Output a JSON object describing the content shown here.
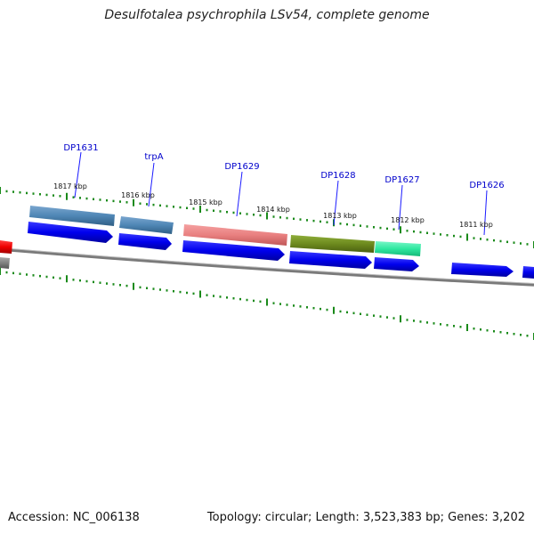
{
  "title": "Desulfotalea psychrophila LSv54, complete genome",
  "footer": {
    "accession": "Accession: NC_006138",
    "summary": "Topology: circular; Length: 3,523,383 bp; Genes: 3,202"
  },
  "genes": [
    {
      "label": "DP1631"
    },
    {
      "label": "trpA"
    },
    {
      "label": "DP1629"
    },
    {
      "label": "DP1628"
    },
    {
      "label": "DP1627"
    },
    {
      "label": "DP1626"
    }
  ],
  "ticks": [
    "1817 kbp",
    "1816 kbp",
    "1815 kbp",
    "1814 kbp",
    "1813 kbp",
    "1812 kbp",
    "1811 kbp"
  ],
  "colors": {
    "cds": "#0000ee",
    "steelblue": "#4f86b5",
    "salmon": "#e98080",
    "olive": "#6d8a1e",
    "mint": "#2ee8a0",
    "red": "#ee0000",
    "backbone": "#808080",
    "tick": "#1a8a1a",
    "label": "#0000cc"
  }
}
